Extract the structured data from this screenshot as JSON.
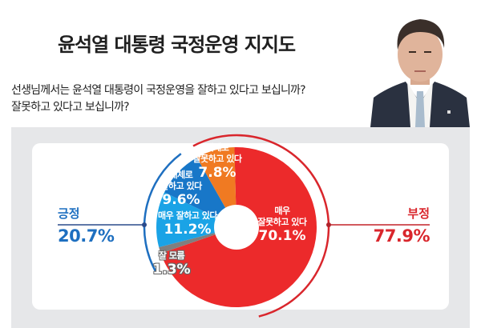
{
  "header": {
    "title": "윤석열 대통령 국정운영 지지도",
    "question_line1": "선생님께서는 윤석열 대통령이 국정운영을 잘하고 있다고 보십니까?",
    "question_line2": "잘못하고 있다고 보십니까?"
  },
  "photo": {
    "description": "portrait-photo"
  },
  "summary": {
    "positive": {
      "label": "긍정",
      "value": "20.7%",
      "color": "#1e6fc0"
    },
    "negative": {
      "label": "부정",
      "value": "77.9%",
      "color": "#d9262c"
    }
  },
  "slices": [
    {
      "name_line1": "매우",
      "name_line2": "잘못하고 있다",
      "pct_label": "70.1%",
      "value": 70.1,
      "color": "#ec2a2b"
    },
    {
      "name_line1": "잘 모름",
      "name_line2": "",
      "pct_label": "1.3%",
      "value": 1.3,
      "color": "#7f7f7f"
    },
    {
      "name_line1": "매우 잘하고 있다",
      "name_line2": "",
      "pct_label": "11.2%",
      "value": 11.2,
      "color": "#1aa3e6"
    },
    {
      "name_line1": "대체로",
      "name_line2": "잘하고 있다",
      "pct_label": "9.6%",
      "value": 9.6,
      "color": "#1877c8"
    },
    {
      "name_line1": "대체로",
      "name_line2": "잘못하고 있다",
      "pct_label": "7.8%",
      "value": 7.8,
      "color": "#f07a22"
    }
  ],
  "chart_data": {
    "type": "pie",
    "title": "윤석열 대통령 국정운영 지지도",
    "subtitle": "선생님께서는 윤석열 대통령이 국정운영을 잘하고 있다고 보십니까? 잘못하고 있다고 보십니까?",
    "categories": [
      "매우 잘못하고 있다",
      "잘 모름",
      "매우 잘하고 있다",
      "대체로 잘하고 있다",
      "대체로 잘못하고 있다"
    ],
    "values": [
      70.1,
      1.3,
      11.2,
      9.6,
      7.8
    ],
    "colors": [
      "#ec2a2b",
      "#7f7f7f",
      "#1aa3e6",
      "#1877c8",
      "#f07a22"
    ],
    "donut": true,
    "groups": [
      {
        "name": "긍정",
        "value": 20.7,
        "members": [
          "매우 잘하고 있다",
          "대체로 잘하고 있다"
        ]
      },
      {
        "name": "부정",
        "value": 77.9,
        "members": [
          "매우 잘못하고 있다",
          "대체로 잘못하고 있다"
        ]
      }
    ],
    "unit": "%"
  }
}
